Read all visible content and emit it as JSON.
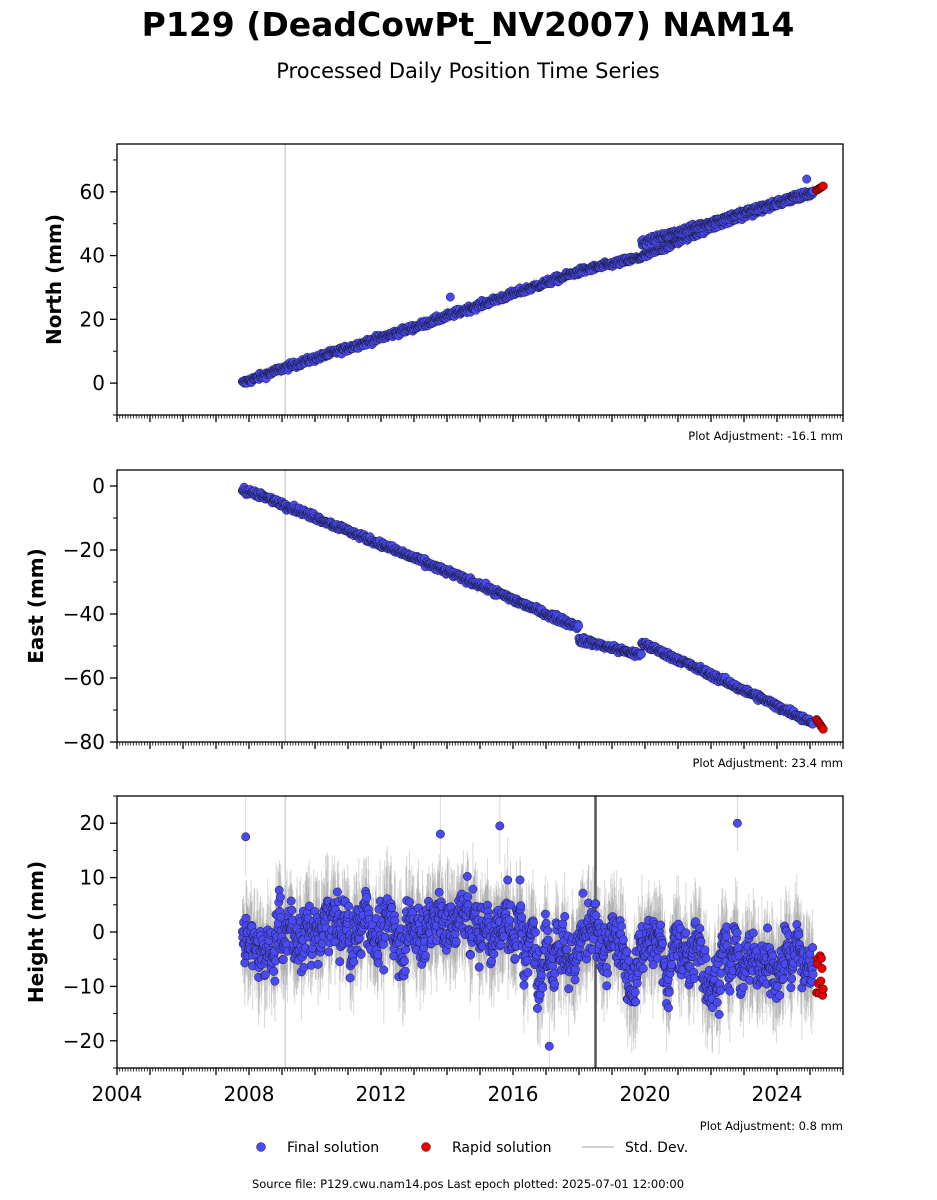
{
  "title": "P129 (DeadCowPt_NV2007) NAM14",
  "subtitle": "Processed Daily Position Time Series",
  "source_note": "Source file: P129.cwu.nam14.pos  Last epoch plotted: 2025-07-01 12:00:00",
  "legend": [
    {
      "label": "Final solution",
      "color": "#4a4af2"
    },
    {
      "label": "Rapid solution",
      "color": "#e60000"
    },
    {
      "label": "Std. Dev.",
      "color": "#d0d0d0"
    }
  ],
  "colors": {
    "final": "#4a4af2",
    "rapid": "#e60000",
    "stddev": "#c8c8c8",
    "vline": "#d0d0d0"
  },
  "chart_data": [
    {
      "type": "scatter",
      "ylabel": "North (mm)",
      "xlim": [
        2004,
        2026
      ],
      "ylim": [
        -10,
        75
      ],
      "yticks": [
        0,
        20,
        40,
        60
      ],
      "adjustment": "Plot Adjustment: -16.1 mm",
      "vlines": [
        2009.1
      ],
      "grid": false,
      "series": [
        {
          "name": "Final solution",
          "segments": [
            {
              "x": [
                2007.8,
                2009.0,
                2011.0,
                2013.0,
                2015.0,
                2017.0,
                2018.0,
                2019.9,
                2022.0,
                2025.1
              ],
              "y": [
                0,
                4.5,
                11,
                17.5,
                24.5,
                31.5,
                35,
                39.5,
                49,
                60
              ]
            },
            {
              "x": [
                2019.9,
                2025.1
              ],
              "y": [
                44,
                60
              ]
            }
          ],
          "noise": 1.0,
          "outliers": [
            [
              2014.1,
              27
            ],
            [
              2024.9,
              64
            ]
          ]
        },
        {
          "name": "Rapid solution",
          "x": [
            2025.2,
            2025.4
          ],
          "y": [
            60.5,
            61.8
          ]
        }
      ]
    },
    {
      "type": "scatter",
      "ylabel": "East (mm)",
      "xlim": [
        2004,
        2026
      ],
      "ylim": [
        -80,
        5
      ],
      "yticks": [
        -80,
        -60,
        -40,
        -20,
        0
      ],
      "adjustment": "Plot Adjustment: 23.4 mm",
      "vlines": [
        2009.1
      ],
      "grid": false,
      "series": [
        {
          "name": "Final solution",
          "segments": [
            {
              "x": [
                2007.8,
                2009.0,
                2011.0,
                2013.0,
                2015.0,
                2017.0,
                2018.0
              ],
              "y": [
                -1,
                -5.5,
                -14,
                -22.5,
                -31,
                -40,
                -44
              ]
            },
            {
              "x": [
                2018.0,
                2019.9
              ],
              "y": [
                -48,
                -53
              ]
            },
            {
              "x": [
                2019.9,
                2022.0,
                2025.1
              ],
              "y": [
                -49,
                -59,
                -74
              ]
            }
          ],
          "noise": 1.0,
          "outliers": []
        },
        {
          "name": "Rapid solution",
          "x": [
            2025.2,
            2025.4
          ],
          "y": [
            -73,
            -76
          ]
        }
      ]
    },
    {
      "type": "scatter",
      "ylabel": "Height (mm)",
      "xlim": [
        2004,
        2026
      ],
      "ylim": [
        -25,
        25
      ],
      "yticks": [
        -20,
        -10,
        0,
        10,
        20
      ],
      "xticks": [
        2004,
        2008,
        2012,
        2016,
        2020,
        2024
      ],
      "adjustment": "Plot Adjustment: 0.8 mm",
      "vlines": [
        2009.1
      ],
      "darkline": 2018.5,
      "grid": false,
      "series": [
        {
          "name": "Final solution",
          "segments": [
            {
              "x": [
                2007.8,
                2010.0,
                2012.0,
                2014.0,
                2015.5,
                2016.5,
                2018.0,
                2020.0,
                2022.0,
                2024.0,
                2025.1
              ],
              "y": [
                0,
                0,
                1,
                2,
                2,
                0,
                -3,
                -4,
                -4,
                -5,
                -6
              ]
            }
          ],
          "noise": 5.5,
          "outliers": [
            [
              2007.9,
              17.5
            ],
            [
              2013.8,
              18
            ],
            [
              2015.6,
              19.5
            ],
            [
              2022.8,
              20
            ],
            [
              2017.1,
              -21
            ]
          ]
        },
        {
          "name": "Rapid solution",
          "x": [
            2025.2,
            2025.4
          ],
          "y": [
            -13,
            -4
          ]
        }
      ]
    }
  ]
}
